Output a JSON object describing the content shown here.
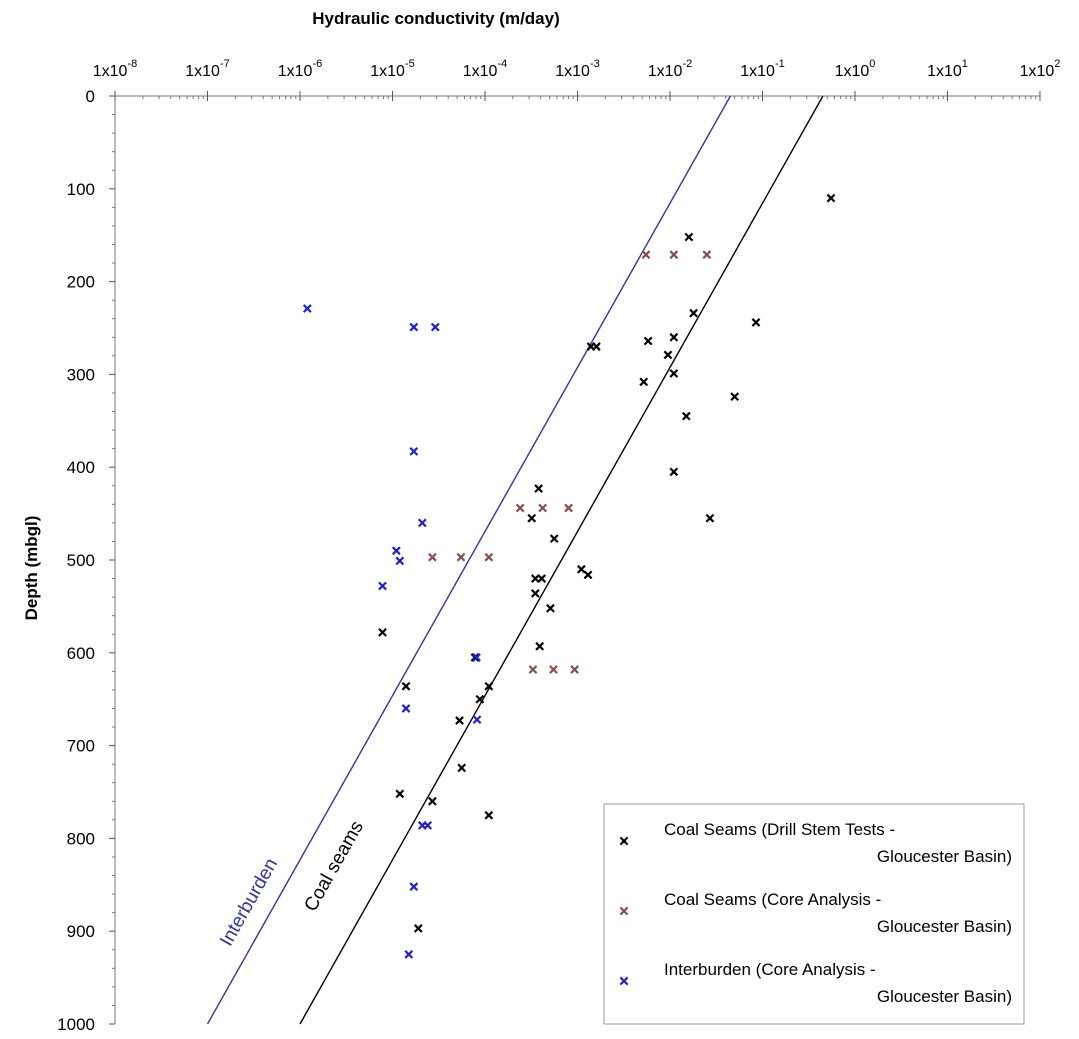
{
  "chart_data": {
    "type": "scatter",
    "xlabel": "Hydraulic conductivity (m/day)",
    "ylabel": "Depth (mbgl)",
    "x_scale": "log",
    "xlim": [
      1e-08,
      100
    ],
    "ylim": [
      0,
      1000
    ],
    "y_inverted": true,
    "x_axis_position": "top",
    "x_tick_labels": [
      {
        "base": "1x10",
        "exp": "-8"
      },
      {
        "base": "1x10",
        "exp": "-7"
      },
      {
        "base": "1x10",
        "exp": "-6"
      },
      {
        "base": "1x10",
        "exp": "-5"
      },
      {
        "base": "1x10",
        "exp": "-4"
      },
      {
        "base": "1x10",
        "exp": "-3"
      },
      {
        "base": "1x10",
        "exp": "-2"
      },
      {
        "base": "1x10",
        "exp": "-1"
      },
      {
        "base": "1x10",
        "exp": "0"
      },
      {
        "base": "1x10",
        "exp": "1"
      },
      {
        "base": "1x10",
        "exp": "2"
      }
    ],
    "y_ticks": [
      0,
      100,
      200,
      300,
      400,
      500,
      600,
      700,
      800,
      900,
      1000
    ],
    "grid": false,
    "legend_position": "bottom-right",
    "series": [
      {
        "name_lines": [
          "Coal Seams (Drill Stem Tests -",
          "Gloucester Basin)"
        ],
        "color": "#000000",
        "marker": "x",
        "points": [
          {
            "x": 0.55,
            "y": 110
          },
          {
            "x": 0.016,
            "y": 152
          },
          {
            "x": 0.018,
            "y": 234
          },
          {
            "x": 0.085,
            "y": 244
          },
          {
            "x": 0.011,
            "y": 260
          },
          {
            "x": 0.0058,
            "y": 264
          },
          {
            "x": 0.0014,
            "y": 270
          },
          {
            "x": 0.0016,
            "y": 270
          },
          {
            "x": 0.0095,
            "y": 279
          },
          {
            "x": 0.011,
            "y": 299
          },
          {
            "x": 0.0052,
            "y": 308
          },
          {
            "x": 0.05,
            "y": 324
          },
          {
            "x": 0.015,
            "y": 345
          },
          {
            "x": 0.011,
            "y": 405
          },
          {
            "x": 0.00038,
            "y": 423
          },
          {
            "x": 0.027,
            "y": 455
          },
          {
            "x": 0.00032,
            "y": 455
          },
          {
            "x": 0.00056,
            "y": 477
          },
          {
            "x": 0.0011,
            "y": 510
          },
          {
            "x": 0.0013,
            "y": 516
          },
          {
            "x": 0.00035,
            "y": 520
          },
          {
            "x": 0.00041,
            "y": 520
          },
          {
            "x": 0.00035,
            "y": 536
          },
          {
            "x": 0.00051,
            "y": 552
          },
          {
            "x": 7.8e-06,
            "y": 578
          },
          {
            "x": 0.00039,
            "y": 593
          },
          {
            "x": 7.8e-05,
            "y": 605
          },
          {
            "x": 0.00011,
            "y": 636
          },
          {
            "x": 1.4e-05,
            "y": 636
          },
          {
            "x": 8.8e-05,
            "y": 650
          },
          {
            "x": 5.3e-05,
            "y": 673
          },
          {
            "x": 5.6e-05,
            "y": 724
          },
          {
            "x": 1.2e-05,
            "y": 752
          },
          {
            "x": 2.7e-05,
            "y": 760
          },
          {
            "x": 0.00011,
            "y": 775
          },
          {
            "x": 1.9e-05,
            "y": 897
          }
        ]
      },
      {
        "name_lines": [
          "Coal Seams (Core Analysis -",
          "Gloucester Basin)"
        ],
        "color": "#8b4c4c",
        "marker": "x",
        "points": [
          {
            "x": 0.0055,
            "y": 171
          },
          {
            "x": 0.011,
            "y": 171
          },
          {
            "x": 0.025,
            "y": 171
          },
          {
            "x": 0.00024,
            "y": 444
          },
          {
            "x": 0.00042,
            "y": 444
          },
          {
            "x": 0.0008,
            "y": 444
          },
          {
            "x": 2.7e-05,
            "y": 497
          },
          {
            "x": 5.5e-05,
            "y": 497
          },
          {
            "x": 0.00011,
            "y": 497
          },
          {
            "x": 0.00033,
            "y": 618
          },
          {
            "x": 0.00055,
            "y": 618
          },
          {
            "x": 0.00093,
            "y": 618
          }
        ]
      },
      {
        "name_lines": [
          "Interburden (Core Analysis -",
          "Gloucester Basin)"
        ],
        "color": "#1f1fd6",
        "marker": "x",
        "points": [
          {
            "x": 1.2e-06,
            "y": 229
          },
          {
            "x": 1.7e-05,
            "y": 249
          },
          {
            "x": 2.9e-05,
            "y": 249
          },
          {
            "x": 1.7e-05,
            "y": 383
          },
          {
            "x": 2.1e-05,
            "y": 460
          },
          {
            "x": 1.1e-05,
            "y": 490
          },
          {
            "x": 1.2e-05,
            "y": 501
          },
          {
            "x": 7.8e-06,
            "y": 528
          },
          {
            "x": 8.1e-05,
            "y": 605
          },
          {
            "x": 1.4e-05,
            "y": 660
          },
          {
            "x": 8.2e-05,
            "y": 672
          },
          {
            "x": 2.1e-05,
            "y": 786
          },
          {
            "x": 2.4e-05,
            "y": 786
          },
          {
            "x": 1.7e-05,
            "y": 852
          },
          {
            "x": 1.5e-05,
            "y": 925
          }
        ]
      }
    ],
    "trend_lines": [
      {
        "label": "Interburden",
        "color": "#3333aa",
        "x_at_top": 0.045,
        "x_at_bottom": 1e-07
      },
      {
        "label": "Coal seams",
        "color": "#000000",
        "x_at_top": 0.45,
        "x_at_bottom": 1e-06
      }
    ]
  }
}
